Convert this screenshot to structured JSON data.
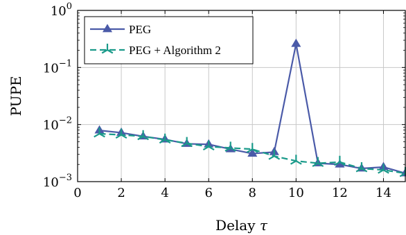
{
  "chart_data": {
    "type": "line",
    "xlabel": "Delay",
    "xlabel_symbol": "τ",
    "ylabel": "PUPE",
    "xlim": [
      0,
      15
    ],
    "ylim": [
      0.001,
      1
    ],
    "yscale": "log",
    "grid": true,
    "legend_position": "top-left",
    "x_ticks": [
      0,
      2,
      4,
      6,
      8,
      10,
      12,
      14
    ],
    "y_ticks": [
      {
        "value": 0.001,
        "base": "10",
        "exp": "−3"
      },
      {
        "value": 0.01,
        "base": "10",
        "exp": "−2"
      },
      {
        "value": 0.1,
        "base": "10",
        "exp": "−1"
      },
      {
        "value": 1,
        "base": "10",
        "exp": "0"
      }
    ],
    "x": [
      1,
      2,
      3,
      4,
      5,
      6,
      7,
      8,
      9,
      10,
      11,
      12,
      13,
      14,
      15
    ],
    "series": [
      {
        "name": "PEG",
        "color": "#4a5aa8",
        "marker": "triangle",
        "line_style": "solid",
        "values": [
          0.0079,
          0.0072,
          0.0062,
          0.0055,
          0.0046,
          0.0045,
          0.0037,
          0.0031,
          0.0033,
          0.26,
          0.0021,
          0.002,
          0.0017,
          0.0018,
          0.0014
        ]
      },
      {
        "name": "PEG + Algorithm 2",
        "color": "#1a9a8a",
        "marker": "tri-star",
        "line_style": "dashed",
        "values": [
          0.0069,
          0.0066,
          0.0062,
          0.0054,
          0.0047,
          0.0041,
          0.0039,
          0.0037,
          0.0028,
          0.0023,
          0.0021,
          0.0022,
          0.0017,
          0.0016,
          0.0014
        ]
      }
    ]
  }
}
